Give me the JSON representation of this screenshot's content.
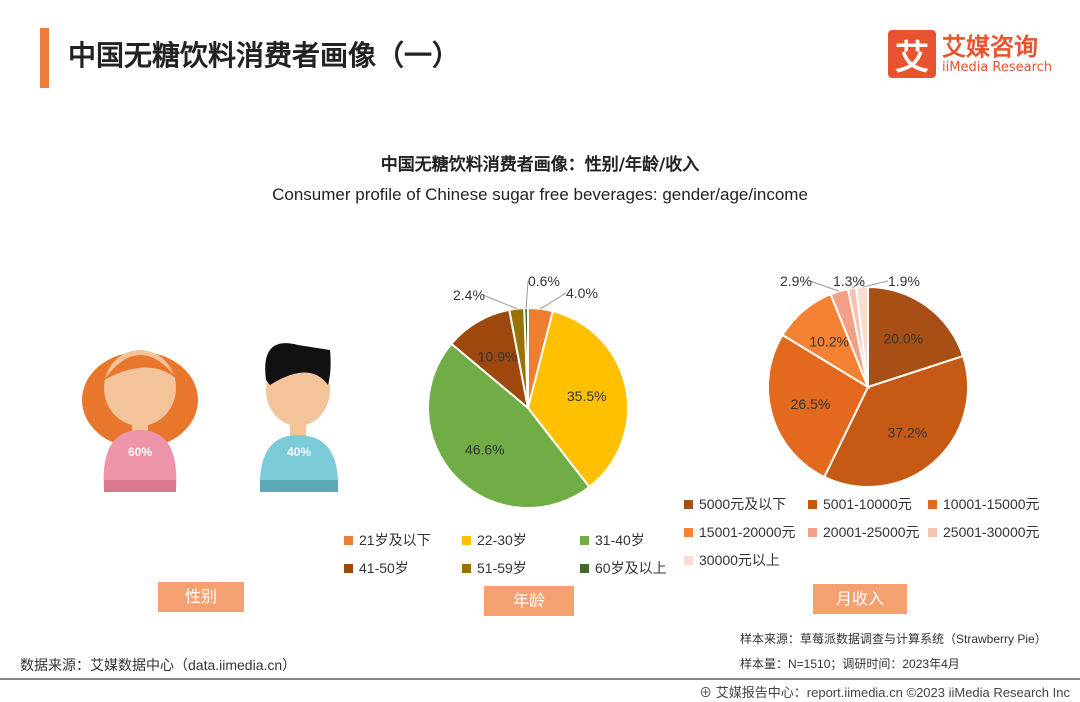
{
  "header": {
    "title": "中国无糖饮料消费者画像（一）",
    "logo_mark": "艾",
    "logo_cn": "艾媒咨询",
    "logo_en": "iiMedia Research"
  },
  "chart_data": [
    {
      "type": "pictogram",
      "title": "中国无糖饮料消费者画像：性别/年龄/收入",
      "subtitle": "Consumer profile of Chinese sugar free beverages: gender/age/income",
      "label": "性别",
      "series": [
        {
          "name": "female",
          "value": 60,
          "label": "60%"
        },
        {
          "name": "male",
          "value": 40,
          "label": "40%"
        }
      ]
    },
    {
      "type": "pie",
      "label": "年龄",
      "categories": [
        "21岁及以下",
        "22-30岁",
        "31-40岁",
        "41-50岁",
        "51-59岁",
        "60岁及以上"
      ],
      "values": [
        4.0,
        35.5,
        46.6,
        10.9,
        2.4,
        0.6
      ],
      "labels": [
        "4.0%",
        "35.5%",
        "46.6%",
        "10.9%",
        "2.4%",
        "0.6%"
      ],
      "colors": [
        "#ED7D31",
        "#FFC000",
        "#70AD47",
        "#9E480E",
        "#997300",
        "#43682B"
      ],
      "legend": "bottom"
    },
    {
      "type": "pie",
      "label": "月收入",
      "categories": [
        "5000元及以下",
        "5001-10000元",
        "10001-15000元",
        "15001-20000元",
        "20001-25000元",
        "25001-30000元",
        "30000元以上"
      ],
      "values": [
        20.0,
        37.2,
        26.5,
        10.2,
        2.9,
        1.3,
        1.9
      ],
      "labels": [
        "20.0%",
        "37.2%",
        "26.5%",
        "10.2%",
        "2.9%",
        "1.3%",
        "1.9%"
      ],
      "colors": [
        "#A84F16",
        "#C65A14",
        "#E2691E",
        "#F58232",
        "#F2A086",
        "#F7C3AE",
        "#FADDD2"
      ],
      "legend": "bottom"
    }
  ],
  "footer": {
    "source": "数据来源：艾媒数据中心（data.iimedia.cn）",
    "sample_source": "样本来源：草莓派数据调查与计算系统（Strawberry Pie）",
    "sample_size": "样本量：N=1510；调研时间：2023年4月",
    "copyright": "艾媒报告中心：report.iimedia.cn  ©2023  iiMedia Research  Inc"
  }
}
